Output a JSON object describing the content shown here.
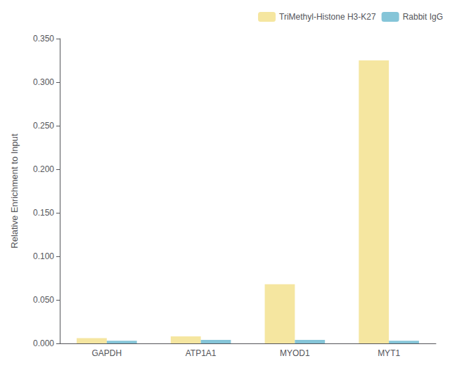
{
  "chart_data": {
    "type": "bar",
    "categories": [
      "GAPDH",
      "ATP1A1",
      "MYOD1",
      "MYT1"
    ],
    "series": [
      {
        "name": "TriMethyl-Histone H3-K27",
        "color": "#F5E6A0",
        "values": [
          0.006,
          0.008,
          0.068,
          0.325
        ]
      },
      {
        "name": "Rabbit IgG",
        "color": "#85C5D8",
        "values": [
          0.003,
          0.004,
          0.004,
          0.003
        ]
      }
    ],
    "ylabel": "Relative Enrichment to Input",
    "ylim": [
      0,
      0.35
    ],
    "yticks": [
      {
        "value": 0,
        "label": "0.000"
      },
      {
        "value": 0.05,
        "label": "0.050"
      },
      {
        "value": 0.1,
        "label": "0.100"
      },
      {
        "value": 0.15,
        "label": "0.150"
      },
      {
        "value": 0.2,
        "label": "0.200"
      },
      {
        "value": 0.25,
        "label": "0.250"
      },
      {
        "value": 0.3,
        "label": "0.300"
      },
      {
        "value": 0.35,
        "label": "0.350"
      }
    ],
    "grid": false,
    "legend": "upper right"
  }
}
